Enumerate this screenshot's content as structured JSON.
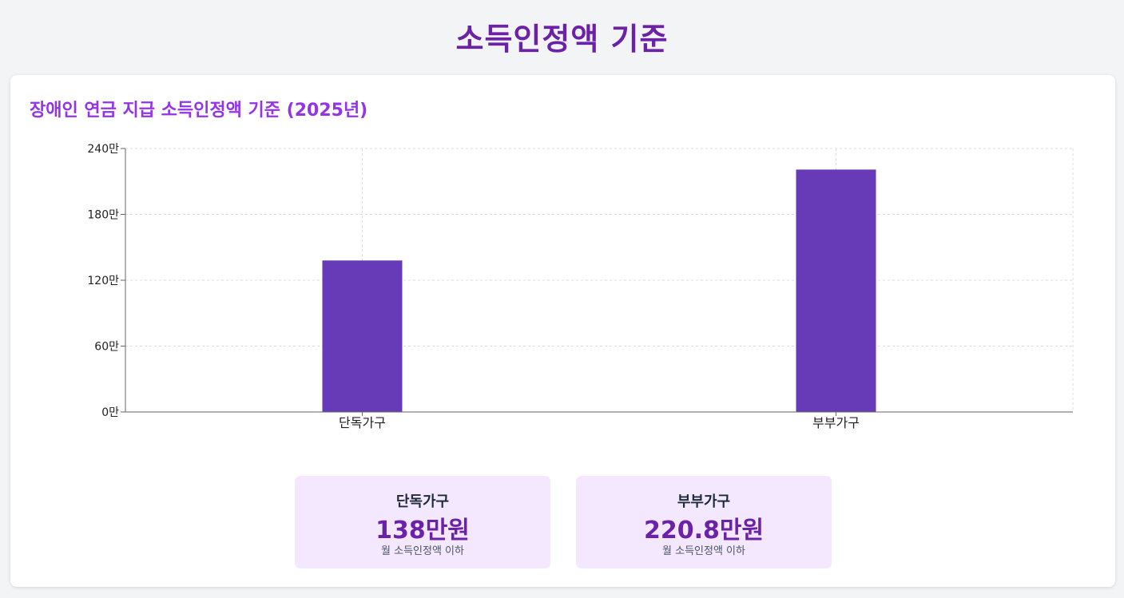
{
  "page": {
    "title": "소득인정액 기준"
  },
  "card": {
    "title": "장애인 연금 지급 소득인정액 기준 (2025년)"
  },
  "chart_data": {
    "type": "bar",
    "title": "장애인 연금 지급 소득인정액 기준 (2025년)",
    "categories": [
      "단독가구",
      "부부가구"
    ],
    "series": [
      {
        "values": [
          138,
          220.8
        ]
      }
    ],
    "ylim": [
      0,
      240
    ],
    "yticks": [
      0,
      60,
      120,
      180,
      240
    ],
    "ytick_labels": [
      "0만",
      "60만",
      "120만",
      "180만",
      "240만"
    ],
    "grid": true,
    "bar_color": "#673ab7",
    "xlabel": "",
    "ylabel": ""
  },
  "summary": [
    {
      "label": "단독가구",
      "value": "138만원",
      "note": "월 소득인정액 이하"
    },
    {
      "label": "부부가구",
      "value": "220.8만원",
      "note": "월 소득인정액 이하"
    }
  ],
  "colors": {
    "title": "#6b21a8",
    "card_title": "#9333ea",
    "bar": "#673ab7",
    "summary_bg": "#f3e8ff"
  }
}
